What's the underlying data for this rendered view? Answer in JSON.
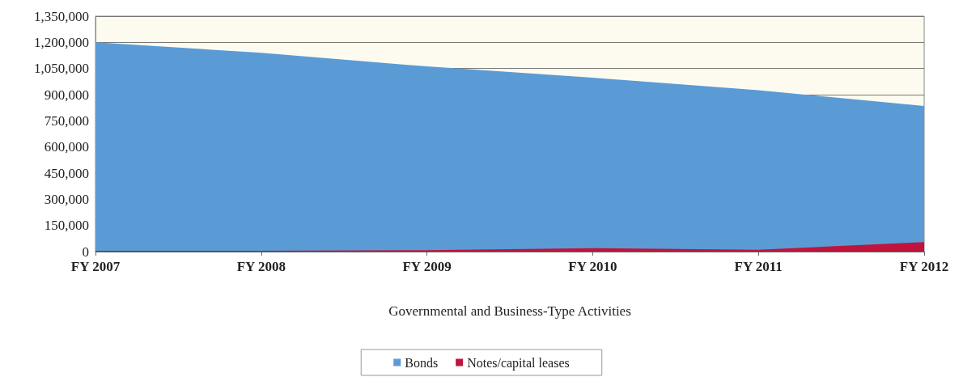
{
  "chart_data": {
    "type": "area",
    "xlabel": "Governmental and Business-Type Activities",
    "categories": [
      "FY 2007",
      "FY 2008",
      "FY 2009",
      "FY 2010",
      "FY 2011",
      "FY 2012"
    ],
    "series": [
      {
        "name": "Bonds",
        "color": "#5b9bd5",
        "values": [
          1200000,
          1140000,
          1062000,
          997000,
          925000,
          835000
        ]
      },
      {
        "name": "Notes/capital leases",
        "color": "#c0143c",
        "values": [
          5000,
          5000,
          8000,
          20000,
          10000,
          55000
        ]
      }
    ],
    "ylim": [
      0,
      1350000
    ],
    "yticks": [
      0,
      {
        "value": 150000,
        "label": "150,000"
      },
      {
        "value": 300000,
        "label": "300,000"
      },
      {
        "value": 450000,
        "label": "450,000"
      },
      {
        "value": 600000,
        "label": "600,000"
      },
      {
        "value": 750000,
        "label": "750,000"
      },
      {
        "value": 900000,
        "label": "900,000"
      },
      {
        "value": 1050000,
        "label": "1,050,000"
      },
      {
        "value": 1200000,
        "label": "1,200,000"
      },
      {
        "value": 1350000,
        "label": "1,350,000"
      }
    ],
    "grid": "y",
    "legend": "bottom"
  }
}
